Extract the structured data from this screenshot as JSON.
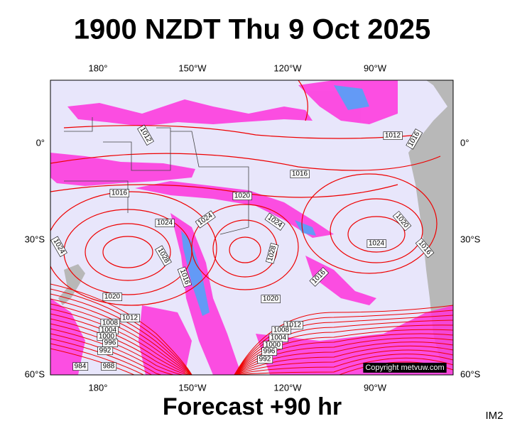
{
  "title": "1900 NZDT Thu 9 Oct 2025",
  "longitude_labels": [
    "180°",
    "150°W",
    "120°W",
    "90°W"
  ],
  "latitude_labels": [
    "0°",
    "30°S",
    "60°S"
  ],
  "isobar_labels": [
    1012,
    1012,
    1016,
    1016,
    1016,
    1020,
    1024,
    1024,
    1024,
    1020,
    1024,
    1016,
    1024,
    1028,
    1028,
    1016,
    1016,
    1020,
    1020,
    1012,
    1008,
    1004,
    1000,
    996,
    992,
    984,
    988,
    1012,
    1008,
    1004,
    1000,
    996,
    992
  ],
  "copyright": "Copyright metvuw.com",
  "footer": "Forecast +90 hr",
  "image_code": "IM2"
}
